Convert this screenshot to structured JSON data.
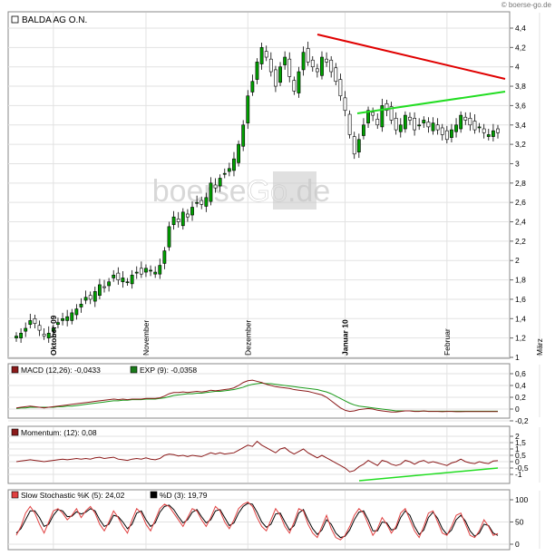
{
  "copyright": "© boerse-go.de",
  "watermark": {
    "left": "boerse",
    "mid": "Go",
    "right": ".de"
  },
  "main": {
    "title": "BALDA AG O.N.",
    "y_ticks": [
      "4,4",
      "4,2",
      "4",
      "3,8",
      "3,6",
      "3,4",
      "3,2",
      "3",
      "2,8",
      "2,6",
      "2,4",
      "2,2",
      "2",
      "1,8",
      "1,6",
      "1,4",
      "1,2",
      "1"
    ],
    "y_values": [
      4.4,
      4.2,
      4.0,
      3.8,
      3.6,
      3.4,
      3.2,
      3.0,
      2.8,
      2.6,
      2.4,
      2.2,
      2.0,
      1.8,
      1.6,
      1.4,
      1.2,
      1.0
    ],
    "x_labels": [
      {
        "label": "Oktober 09",
        "bold": true,
        "idx": 8
      },
      {
        "label": "November",
        "bold": false,
        "idx": 28
      },
      {
        "label": "Dezember",
        "bold": false,
        "idx": 50
      },
      {
        "label": "Januar 10",
        "bold": true,
        "idx": 71
      },
      {
        "label": "Februar",
        "bold": false,
        "idx": 93
      },
      {
        "label": "März",
        "bold": false,
        "idx": 113
      }
    ]
  },
  "macd": {
    "legend": [
      {
        "label": "MACD (12,26): -0,0433",
        "color": "#8b1a1a"
      },
      {
        "label": "EXP (9): -0,0358",
        "color": "#1a7a1a"
      }
    ],
    "y_ticks": [
      "0,6",
      "0,4",
      "0,2",
      "0",
      "-0,2"
    ],
    "y_values": [
      0.6,
      0.4,
      0.2,
      0,
      -0.2
    ]
  },
  "momentum": {
    "legend": [
      {
        "label": "Momentum: (12): 0,08",
        "color": "#8b1a1a"
      }
    ],
    "y_ticks": [
      "2",
      "1,5",
      "1",
      "0,5",
      "0",
      "-0,5",
      "-1"
    ],
    "y_values": [
      2,
      1.5,
      1,
      0.5,
      0,
      -0.5,
      -1
    ]
  },
  "stoch": {
    "legend": [
      {
        "label": "Slow Stochastic %K (5): 24,02",
        "color": "#e04040"
      },
      {
        "label": "%D (3): 19,79",
        "color": "#000000"
      }
    ],
    "y_ticks": [
      "100",
      "50",
      "0"
    ],
    "y_values": [
      100,
      50,
      0
    ]
  },
  "chart_data": {
    "type": "candlestick",
    "title": "BALDA AG O.N.",
    "ylim": [
      1.0,
      4.4
    ],
    "x_categories_months": [
      "Oktober 09",
      "November",
      "Dezember",
      "Januar 10",
      "Februar",
      "März"
    ],
    "close": [
      1.22,
      1.25,
      1.3,
      1.38,
      1.35,
      1.28,
      1.22,
      1.25,
      1.3,
      1.36,
      1.4,
      1.42,
      1.46,
      1.5,
      1.55,
      1.62,
      1.6,
      1.68,
      1.75,
      1.72,
      1.78,
      1.85,
      1.8,
      1.82,
      1.78,
      1.85,
      1.88,
      1.86,
      1.92,
      1.9,
      1.88,
      1.95,
      2.1,
      2.35,
      2.45,
      2.4,
      2.5,
      2.45,
      2.55,
      2.6,
      2.58,
      2.65,
      2.8,
      2.75,
      2.85,
      2.9,
      2.95,
      3.05,
      3.2,
      3.4,
      3.7,
      3.85,
      4.05,
      4.2,
      4.1,
      3.95,
      3.8,
      4.0,
      4.1,
      3.9,
      3.75,
      3.95,
      4.15,
      4.05,
      4.0,
      3.95,
      4.1,
      4.05,
      3.95,
      3.85,
      3.7,
      3.55,
      3.3,
      3.1,
      3.25,
      3.4,
      3.55,
      3.5,
      3.4,
      3.6,
      3.55,
      3.45,
      3.35,
      3.4,
      3.5,
      3.45,
      3.35,
      3.4,
      3.45,
      3.38,
      3.42,
      3.35,
      3.3,
      3.25,
      3.35,
      3.4,
      3.5,
      3.45,
      3.4,
      3.35,
      3.38,
      3.32,
      3.3,
      3.34,
      3.32
    ],
    "macd": [
      0.02,
      0.03,
      0.04,
      0.05,
      0.04,
      0.03,
      0.02,
      0.03,
      0.04,
      0.05,
      0.06,
      0.07,
      0.08,
      0.09,
      0.1,
      0.11,
      0.12,
      0.13,
      0.14,
      0.15,
      0.16,
      0.17,
      0.16,
      0.17,
      0.16,
      0.17,
      0.17,
      0.17,
      0.18,
      0.18,
      0.18,
      0.19,
      0.22,
      0.26,
      0.28,
      0.28,
      0.29,
      0.28,
      0.29,
      0.3,
      0.29,
      0.3,
      0.32,
      0.31,
      0.32,
      0.33,
      0.34,
      0.36,
      0.4,
      0.45,
      0.48,
      0.49,
      0.47,
      0.45,
      0.42,
      0.4,
      0.38,
      0.37,
      0.36,
      0.35,
      0.33,
      0.32,
      0.31,
      0.3,
      0.28,
      0.26,
      0.24,
      0.2,
      0.14,
      0.08,
      0.02,
      -0.02,
      -0.04,
      -0.03,
      -0.01,
      0.0,
      0.01,
      0.0,
      -0.02,
      -0.03,
      -0.04,
      -0.05,
      -0.05,
      -0.04,
      -0.03,
      -0.03,
      -0.04,
      -0.04,
      -0.03,
      -0.04,
      -0.04,
      -0.04,
      -0.045,
      -0.04,
      -0.04,
      -0.045,
      -0.045,
      -0.043,
      -0.043,
      -0.043,
      -0.043,
      -0.043,
      -0.043,
      -0.043,
      -0.043
    ],
    "exp": [
      0.01,
      0.02,
      0.02,
      0.03,
      0.03,
      0.03,
      0.03,
      0.03,
      0.03,
      0.04,
      0.04,
      0.05,
      0.05,
      0.06,
      0.07,
      0.08,
      0.09,
      0.1,
      0.11,
      0.12,
      0.13,
      0.14,
      0.14,
      0.15,
      0.15,
      0.16,
      0.16,
      0.16,
      0.17,
      0.17,
      0.17,
      0.18,
      0.19,
      0.21,
      0.23,
      0.24,
      0.25,
      0.26,
      0.26,
      0.27,
      0.27,
      0.28,
      0.29,
      0.3,
      0.3,
      0.31,
      0.32,
      0.33,
      0.35,
      0.37,
      0.4,
      0.42,
      0.43,
      0.44,
      0.43,
      0.43,
      0.42,
      0.41,
      0.4,
      0.39,
      0.38,
      0.37,
      0.36,
      0.35,
      0.34,
      0.33,
      0.31,
      0.29,
      0.26,
      0.22,
      0.18,
      0.14,
      0.1,
      0.07,
      0.05,
      0.04,
      0.03,
      0.02,
      0.01,
      0.0,
      -0.01,
      -0.02,
      -0.03,
      -0.03,
      -0.03,
      -0.03,
      -0.035,
      -0.035,
      -0.035,
      -0.036,
      -0.036,
      -0.036,
      -0.036,
      -0.036,
      -0.036,
      -0.036,
      -0.036,
      -0.036,
      -0.036,
      -0.036,
      -0.036,
      -0.036,
      -0.036,
      -0.036,
      -0.036
    ],
    "momentum": [
      0.0,
      0.05,
      0.1,
      0.15,
      0.1,
      0.05,
      0.0,
      0.05,
      0.1,
      0.15,
      0.2,
      0.15,
      0.2,
      0.25,
      0.2,
      0.25,
      0.2,
      0.3,
      0.35,
      0.25,
      0.3,
      0.35,
      0.2,
      0.15,
      0.1,
      0.2,
      0.25,
      0.2,
      0.3,
      0.2,
      0.15,
      0.25,
      0.5,
      0.6,
      0.55,
      0.45,
      0.5,
      0.4,
      0.5,
      0.45,
      0.4,
      0.55,
      0.7,
      0.6,
      0.7,
      0.6,
      0.65,
      0.7,
      0.9,
      1.1,
      1.3,
      1.2,
      1.6,
      1.3,
      1.1,
      0.9,
      0.7,
      1.0,
      1.1,
      0.8,
      0.6,
      0.8,
      1.0,
      0.7,
      0.5,
      0.3,
      0.5,
      0.3,
      0.1,
      -0.1,
      -0.3,
      -0.5,
      -0.8,
      -0.7,
      -0.4,
      -0.2,
      0.1,
      -0.1,
      -0.3,
      0.1,
      0.0,
      -0.2,
      -0.3,
      -0.2,
      0.1,
      0.0,
      -0.2,
      0.0,
      0.1,
      -0.1,
      0.0,
      -0.1,
      -0.2,
      -0.3,
      -0.1,
      0.0,
      0.2,
      0.0,
      -0.1,
      -0.15,
      0.0,
      -0.1,
      -0.15,
      0.05,
      0.08
    ],
    "stoch_k": [
      20,
      40,
      70,
      85,
      70,
      45,
      25,
      50,
      75,
      80,
      70,
      55,
      65,
      80,
      60,
      75,
      85,
      70,
      45,
      30,
      50,
      75,
      60,
      40,
      25,
      55,
      80,
      70,
      45,
      30,
      55,
      80,
      90,
      85,
      70,
      55,
      40,
      60,
      80,
      75,
      55,
      40,
      60,
      85,
      75,
      50,
      35,
      55,
      80,
      90,
      95,
      85,
      60,
      40,
      30,
      55,
      80,
      65,
      40,
      25,
      50,
      80,
      75,
      45,
      25,
      15,
      40,
      65,
      35,
      15,
      10,
      20,
      40,
      65,
      80,
      70,
      45,
      20,
      35,
      60,
      45,
      25,
      40,
      70,
      80,
      55,
      30,
      15,
      40,
      70,
      75,
      50,
      25,
      20,
      40,
      65,
      70,
      45,
      20,
      15,
      30,
      55,
      40,
      20,
      24
    ],
    "stoch_d": [
      25,
      35,
      55,
      75,
      75,
      60,
      40,
      45,
      65,
      78,
      75,
      62,
      63,
      73,
      68,
      72,
      80,
      75,
      55,
      40,
      45,
      65,
      62,
      50,
      35,
      45,
      70,
      75,
      55,
      40,
      48,
      72,
      85,
      88,
      78,
      62,
      48,
      55,
      72,
      78,
      62,
      48,
      55,
      75,
      78,
      60,
      42,
      48,
      70,
      85,
      92,
      90,
      72,
      50,
      38,
      45,
      68,
      70,
      50,
      32,
      42,
      70,
      78,
      55,
      35,
      22,
      32,
      55,
      45,
      25,
      15,
      18,
      32,
      55,
      72,
      75,
      55,
      30,
      30,
      50,
      48,
      32,
      35,
      60,
      75,
      65,
      40,
      22,
      32,
      60,
      72,
      58,
      35,
      22,
      32,
      55,
      65,
      52,
      30,
      18,
      25,
      45,
      42,
      25,
      19.79
    ]
  }
}
